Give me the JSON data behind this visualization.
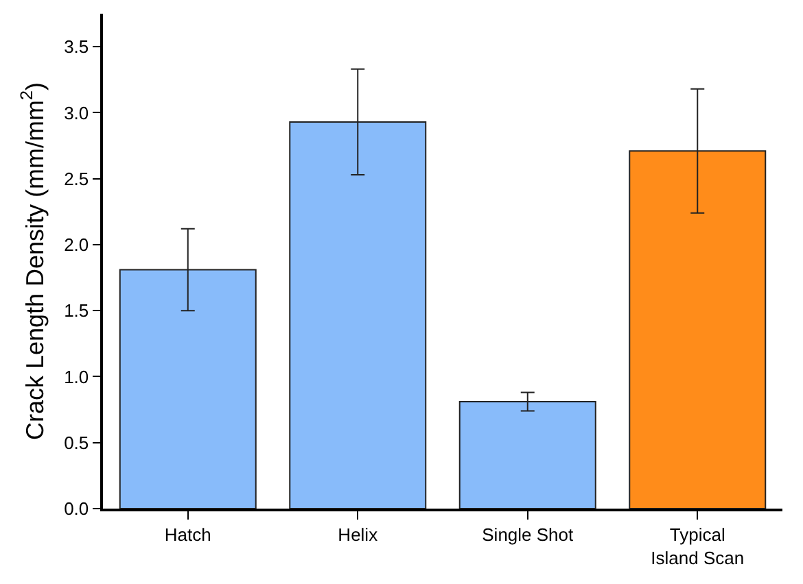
{
  "chart_data": {
    "type": "bar",
    "ylabel": "Crack Length Density (mm/mm$^{2}$)",
    "categories": [
      "Hatch",
      "Helix",
      "Single Shot",
      "Typical\nIsland Scan"
    ],
    "values": [
      1.81,
      2.93,
      0.81,
      2.71
    ],
    "colors": [
      "#88bbfa",
      "#88bbfa",
      "#88bbfa",
      "#ff8c1a"
    ],
    "errors": [
      [
        1.5,
        2.12
      ],
      [
        2.53,
        3.33
      ],
      [
        0.74,
        0.88
      ],
      [
        2.24,
        3.18
      ]
    ],
    "ylim": [
      0,
      3.75
    ],
    "yticks": [
      {
        "value": 0,
        "label": "0.0"
      },
      0.5,
      {
        "value": 1,
        "label": "1.0"
      },
      1.5,
      {
        "value": 2,
        "label": "2.0"
      },
      2.5,
      {
        "value": 3,
        "label": "3.0"
      },
      3.5
    ],
    "grid": false,
    "legend": false
  }
}
